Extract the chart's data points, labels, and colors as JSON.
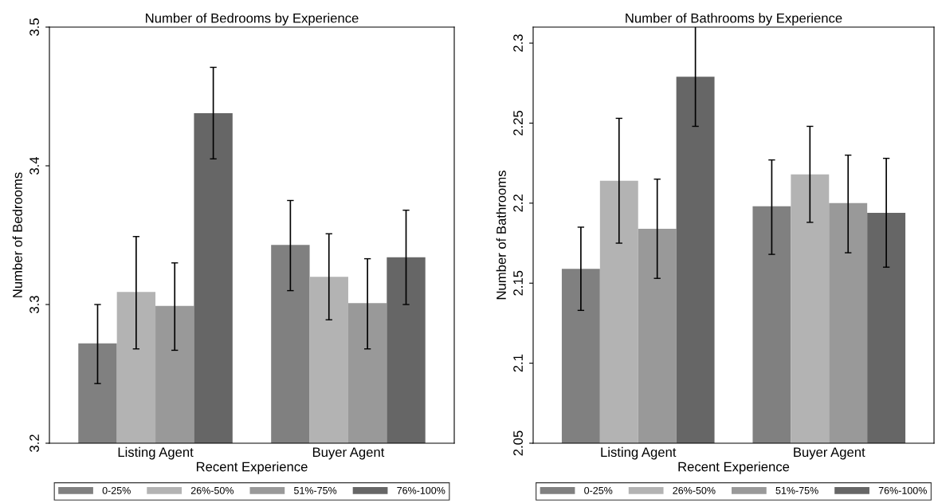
{
  "chart_data": [
    {
      "type": "bar",
      "title": "Number of Bedrooms by Experience",
      "xlabel": "Recent Experience",
      "ylabel": "Number of Bedrooms",
      "categories": [
        "Listing Agent",
        "Buyer Agent"
      ],
      "ylim": [
        3.2,
        3.5
      ],
      "yticks": [
        3.2,
        3.3,
        3.4,
        3.5
      ],
      "grid": false,
      "legend": "bottom",
      "series": [
        {
          "name": "0-25%",
          "color": "#808080",
          "values": [
            3.272,
            3.343
          ],
          "errors": [
            [
              3.243,
              3.3
            ],
            [
              3.31,
              3.375
            ]
          ]
        },
        {
          "name": "26%-50%",
          "color": "#b3b3b3",
          "values": [
            3.309,
            3.32
          ],
          "errors": [
            [
              3.268,
              3.349
            ],
            [
              3.289,
              3.351
            ]
          ]
        },
        {
          "name": "51%-75%",
          "color": "#999999",
          "values": [
            3.299,
            3.301
          ],
          "errors": [
            [
              3.267,
              3.33
            ],
            [
              3.268,
              3.333
            ]
          ]
        },
        {
          "name": "76%-100%",
          "color": "#666666",
          "values": [
            3.438,
            3.334
          ],
          "errors": [
            [
              3.405,
              3.471
            ],
            [
              3.3,
              3.368
            ]
          ]
        }
      ]
    },
    {
      "type": "bar",
      "title": "Number of Bathrooms by Experience",
      "xlabel": "Recent Experience",
      "ylabel": "Number of Bathrooms",
      "categories": [
        "Listing Agent",
        "Buyer Agent"
      ],
      "ylim": [
        2.05,
        2.31
      ],
      "yticks": [
        2.05,
        2.1,
        2.15,
        2.2,
        2.25,
        2.3
      ],
      "grid": false,
      "legend": "bottom",
      "series": [
        {
          "name": "0-25%",
          "color": "#808080",
          "values": [
            2.159,
            2.198
          ],
          "errors": [
            [
              2.133,
              2.185
            ],
            [
              2.168,
              2.227
            ]
          ]
        },
        {
          "name": "26%-50%",
          "color": "#b3b3b3",
          "values": [
            2.214,
            2.218
          ],
          "errors": [
            [
              2.175,
              2.253
            ],
            [
              2.188,
              2.248
            ]
          ]
        },
        {
          "name": "51%-75%",
          "color": "#999999",
          "values": [
            2.184,
            2.2
          ],
          "errors": [
            [
              2.153,
              2.215
            ],
            [
              2.169,
              2.23
            ]
          ]
        },
        {
          "name": "76%-100%",
          "color": "#666666",
          "values": [
            2.279,
            2.194
          ],
          "errors": [
            [
              2.248,
              2.311
            ],
            [
              2.16,
              2.228
            ]
          ]
        }
      ]
    }
  ]
}
